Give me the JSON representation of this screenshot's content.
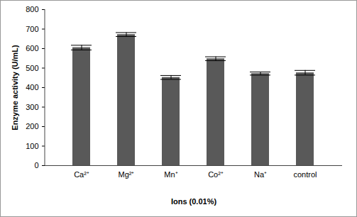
{
  "chart_data": {
    "type": "bar",
    "categories": [
      "Ca²⁺",
      "Mg²⁺",
      "Mn⁺",
      "Co²⁺",
      "Na⁺",
      "control"
    ],
    "values": [
      605,
      672,
      452,
      548,
      472,
      476
    ],
    "errors": [
      12,
      10,
      10,
      10,
      8,
      12
    ],
    "color": "#595959",
    "xlabel": "Ions (0.01%)",
    "ylabel": "Enzyme activity (U/mL)",
    "ylim": [
      0,
      800
    ],
    "yticks": [
      0,
      100,
      200,
      300,
      400,
      500,
      600,
      700,
      800
    ],
    "grid": false
  }
}
